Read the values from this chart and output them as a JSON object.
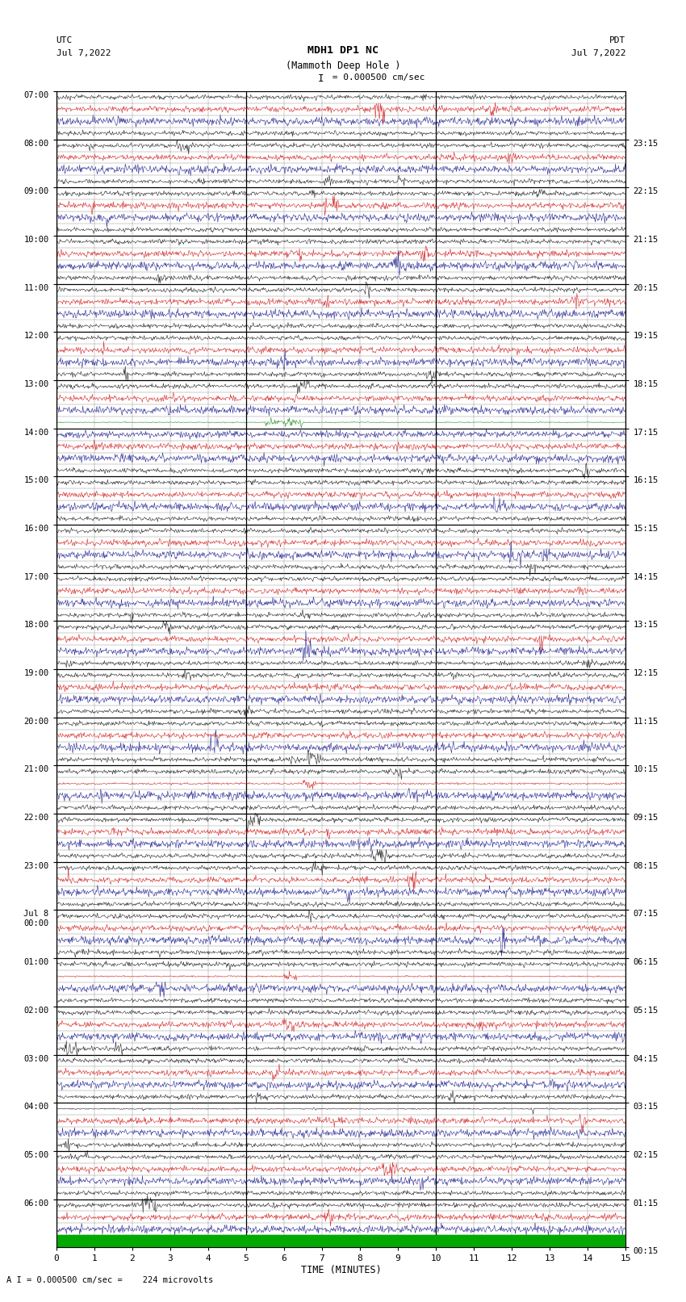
{
  "title_line1": "MDH1 DP1 NC",
  "title_line2": "(Mammoth Deep Hole )",
  "scale_label": "I = 0.000500 cm/sec",
  "left_label": "UTC",
  "left_date": "Jul 7,2022",
  "right_label": "PDT",
  "right_date": "Jul 7,2022",
  "xlabel": "TIME (MINUTES)",
  "bottom_note": "A I = 0.000500 cm/sec =    224 microvolts",
  "xmin": 0,
  "xmax": 15,
  "bg_color": "#ffffff",
  "trace_color_normal": "#000080",
  "trace_color_red": "#cc0000",
  "trace_color_green": "#008000",
  "trace_color_blue": "#0000ff",
  "grid_color_major": "#000000",
  "grid_color_minor": "#888888",
  "total_rows": 96,
  "utc_labels": [
    "07:00",
    "08:00",
    "09:00",
    "10:00",
    "11:00",
    "12:00",
    "13:00",
    "14:00",
    "15:00",
    "16:00",
    "17:00",
    "18:00",
    "19:00",
    "20:00",
    "21:00",
    "22:00",
    "23:00",
    "Jul 8\n00:00",
    "01:00",
    "02:00",
    "03:00",
    "04:00",
    "05:00",
    "06:00"
  ],
  "pdt_labels": [
    "00:15",
    "01:15",
    "02:15",
    "03:15",
    "04:15",
    "05:15",
    "06:15",
    "07:15",
    "08:15",
    "09:15",
    "10:15",
    "11:15",
    "12:15",
    "13:15",
    "14:15",
    "15:15",
    "16:15",
    "17:15",
    "18:15",
    "19:15",
    "20:15",
    "21:15",
    "22:15",
    "23:15"
  ],
  "green_bar_bottom": true,
  "noise_seed": 12345
}
